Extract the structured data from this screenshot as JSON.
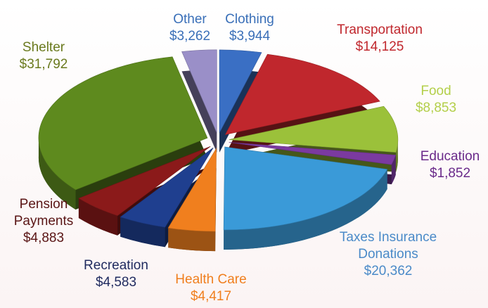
{
  "chart_data": {
    "type": "pie",
    "categories": [
      "Clothing",
      "Transportation",
      "Food",
      "Education",
      "Taxes Insurance Donations",
      "Health Care",
      "Recreation",
      "Pension Payments",
      "Shelter",
      "Other"
    ],
    "values": [
      3944,
      14125,
      8853,
      1852,
      20362,
      4417,
      4583,
      4883,
      31792,
      3262
    ],
    "value_labels": [
      "$3,944",
      "$14,125",
      "$8,853",
      "$1,852",
      "$20,362",
      "$4,417",
      "$4,583",
      "$4,883",
      "$31,792",
      "$3,262"
    ],
    "colors": [
      "#3a6fc4",
      "#c0272d",
      "#9bc13a",
      "#7b3aa0",
      "#3a9ad8",
      "#f07f1e",
      "#1f3f8f",
      "#8b1a1a",
      "#5e8a1e",
      "#9a8fc8"
    ]
  }
}
